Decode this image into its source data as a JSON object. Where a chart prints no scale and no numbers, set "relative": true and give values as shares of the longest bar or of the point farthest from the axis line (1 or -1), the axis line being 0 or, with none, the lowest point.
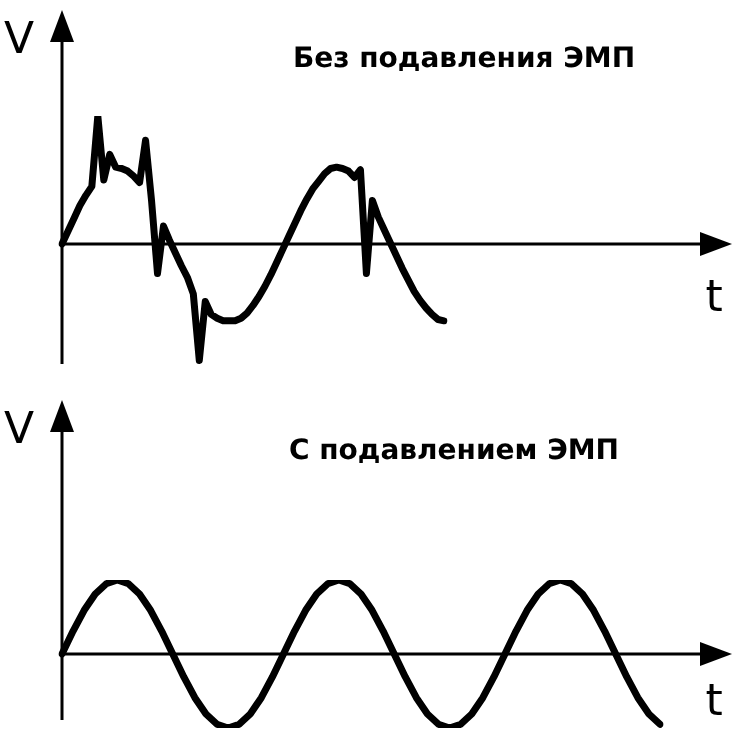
{
  "chart_data": [
    {
      "type": "line",
      "title": "Без подавления ЭМП",
      "xlabel": "t",
      "ylabel": "V",
      "relative": true,
      "color": "#000000",
      "marker": "none",
      "legend": false,
      "categories": [
        null,
        null,
        null,
        null,
        null,
        null,
        null,
        null,
        null,
        null,
        null,
        null,
        null,
        null,
        null,
        null,
        null,
        null,
        null,
        null,
        null,
        null,
        null,
        null,
        null,
        null,
        null,
        null,
        null,
        null,
        null,
        null,
        null,
        null,
        null,
        null,
        null,
        null,
        null,
        null,
        null,
        null,
        null,
        null,
        null,
        null,
        null,
        null,
        null,
        null,
        null,
        null,
        null,
        null,
        null,
        null,
        null,
        null,
        null,
        null,
        null,
        null,
        null,
        null,
        null
      ],
      "values": [
        0,
        0.1,
        0.2,
        0.3,
        0.38,
        0.45,
        1,
        0.5,
        0.7,
        0.6,
        0.59,
        0.57,
        0.53,
        0.48,
        0.81,
        0.34,
        -0.23,
        0.14,
        0.03,
        -0.07,
        -0.17,
        -0.26,
        -0.39,
        -0.91,
        -0.45,
        -0.55,
        -0.58,
        -0.6,
        -0.6,
        -0.6,
        -0.58,
        -0.54,
        -0.48,
        -0.41,
        -0.33,
        -0.24,
        -0.14,
        -0.04,
        0.06,
        0.16,
        0.26,
        0.35,
        0.43,
        0.49,
        0.55,
        0.59,
        0.6,
        0.59,
        0.57,
        0.52,
        0.58,
        -0.23,
        0.34,
        0.21,
        0.11,
        0.01,
        -0.09,
        -0.19,
        -0.28,
        -0.37,
        -0.44,
        -0.5,
        -0.55,
        -0.59,
        -0.6
      ]
    },
    {
      "type": "line",
      "title": "С подавлением ЭМП",
      "xlabel": "t",
      "ylabel": "V",
      "relative": true,
      "color": "#000000",
      "marker": "none",
      "legend": false,
      "categories": [
        null,
        null,
        null,
        null,
        null,
        null,
        null,
        null,
        null,
        null,
        null,
        null,
        null,
        null,
        null,
        null,
        null,
        null,
        null,
        null,
        null,
        null,
        null,
        null,
        null,
        null,
        null,
        null,
        null,
        null,
        null,
        null,
        null,
        null,
        null,
        null,
        null,
        null,
        null,
        null,
        null,
        null,
        null,
        null,
        null,
        null,
        null,
        null,
        null,
        null,
        null,
        null,
        null,
        null,
        null
      ],
      "values": [
        0,
        0.31,
        0.59,
        0.81,
        0.95,
        1,
        0.95,
        0.81,
        0.59,
        0.31,
        0,
        -0.31,
        -0.59,
        -0.81,
        -0.95,
        -1,
        -0.95,
        -0.81,
        -0.59,
        -0.31,
        0,
        0.31,
        0.59,
        0.81,
        0.95,
        1,
        0.95,
        0.81,
        0.59,
        0.31,
        0,
        -0.31,
        -0.59,
        -0.81,
        -0.95,
        -1,
        -0.95,
        -0.81,
        -0.59,
        -0.31,
        0,
        0.31,
        0.59,
        0.81,
        0.95,
        1,
        0.95,
        0.81,
        0.59,
        0.31,
        0,
        -0.31,
        -0.59,
        -0.81,
        -0.95
      ]
    }
  ]
}
